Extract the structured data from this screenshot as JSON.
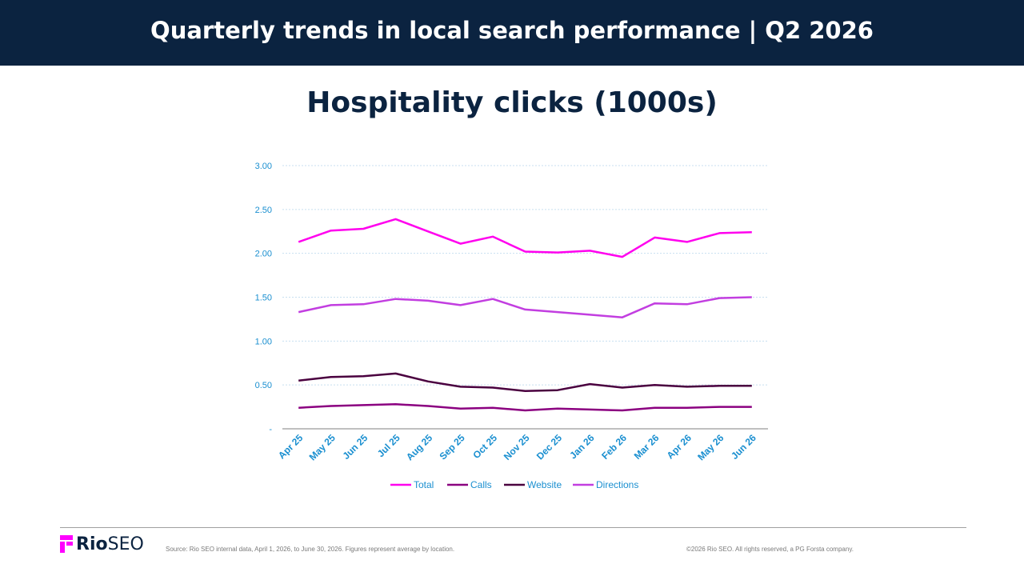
{
  "header": {
    "title": "Quarterly trends in local search performance | Q2 2026"
  },
  "footer": {
    "logo_text_bold": "Rio",
    "logo_text": "SEO",
    "source": "Source: Rio SEO internal data, April 1, 2026, to June 30, 2026. Figures represent average by location.",
    "copyright": "©2026 Rio SEO. All rights reserved, a PG Forsta company."
  },
  "colors": {
    "header_bg": "#0b2340",
    "axis_text": "#1a8fd0",
    "brand_magenta": "#ff00ff"
  },
  "chart_data": {
    "type": "line",
    "title": "Hospitality clicks (1000s)",
    "xlabel": "",
    "ylabel": "",
    "ylim": [
      0,
      3
    ],
    "y_ticks": [
      0,
      0.5,
      1,
      1.5,
      2,
      2.5,
      3
    ],
    "y_tick_labels": [
      "-",
      "0.50",
      "1.00",
      "1.50",
      "2.00",
      "2.50",
      "3.00"
    ],
    "grid": true,
    "legend_position": "bottom",
    "categories": [
      "Apr 25",
      "May 25",
      "Jun 25",
      "Jul 25",
      "Aug 25",
      "Sep 25",
      "Oct 25",
      "Nov 25",
      "Dec 25",
      "Jan 26",
      "Feb 26",
      "Mar 26",
      "Apr 26",
      "May 26",
      "Jun 26"
    ],
    "series": [
      {
        "name": "Total",
        "color": "#ff00ee",
        "values": [
          2.13,
          2.26,
          2.28,
          2.39,
          2.25,
          2.11,
          2.19,
          2.02,
          2.01,
          2.03,
          1.96,
          2.18,
          2.13,
          2.23,
          2.24
        ]
      },
      {
        "name": "Calls",
        "color": "#8b0080",
        "values": [
          0.24,
          0.26,
          0.27,
          0.28,
          0.26,
          0.23,
          0.24,
          0.21,
          0.23,
          0.22,
          0.21,
          0.24,
          0.24,
          0.25,
          0.25
        ]
      },
      {
        "name": "Website",
        "color": "#4a003f",
        "values": [
          0.55,
          0.59,
          0.6,
          0.63,
          0.54,
          0.48,
          0.47,
          0.43,
          0.44,
          0.51,
          0.47,
          0.5,
          0.48,
          0.49,
          0.49
        ]
      },
      {
        "name": "Directions",
        "color": "#c23ee0",
        "values": [
          1.33,
          1.41,
          1.42,
          1.48,
          1.46,
          1.41,
          1.48,
          1.36,
          1.33,
          1.3,
          1.27,
          1.43,
          1.42,
          1.49,
          1.5
        ]
      }
    ]
  }
}
